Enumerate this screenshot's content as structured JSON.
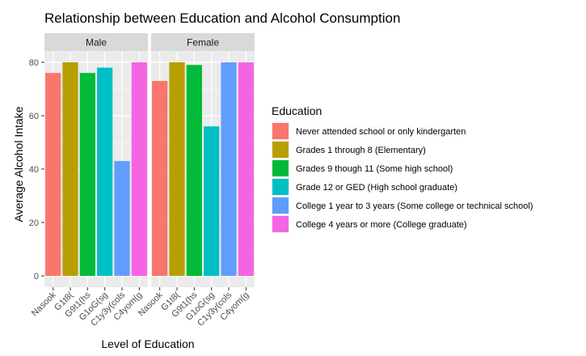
{
  "chart_data": {
    "type": "bar",
    "title": "Relationship between Education and Alcohol Consumption",
    "xlabel": "Level of Education",
    "ylabel": "Average Alcohol Intake",
    "ylim": [
      0,
      80
    ],
    "yticks": [
      0,
      20,
      40,
      60,
      80
    ],
    "grid": true,
    "legend_position": "right",
    "legend_title": "Education",
    "categories": [
      "Nasook",
      "G1t8(",
      "G9t1(hs",
      "G1oG(sg",
      "C1y3y(cols",
      "C4yom(g"
    ],
    "category_legend": [
      "Never attended school or only kindergarten",
      "Grades 1 through 8 (Elementary)",
      "Grades 9 though 11 (Some high school)",
      "Grade 12 or GED (High school graduate)",
      "College 1 year to 3 years (Some college or technical school)",
      "College 4 years or more (College graduate)"
    ],
    "colors": [
      "#F8766D",
      "#B79F00",
      "#00BA38",
      "#00BFC4",
      "#619CFF",
      "#F564E3"
    ],
    "panels": [
      {
        "name": "Male",
        "values": [
          76,
          80,
          76,
          78,
          43,
          80
        ]
      },
      {
        "name": "Female",
        "values": [
          73,
          80,
          79,
          56,
          80,
          80
        ]
      }
    ]
  }
}
